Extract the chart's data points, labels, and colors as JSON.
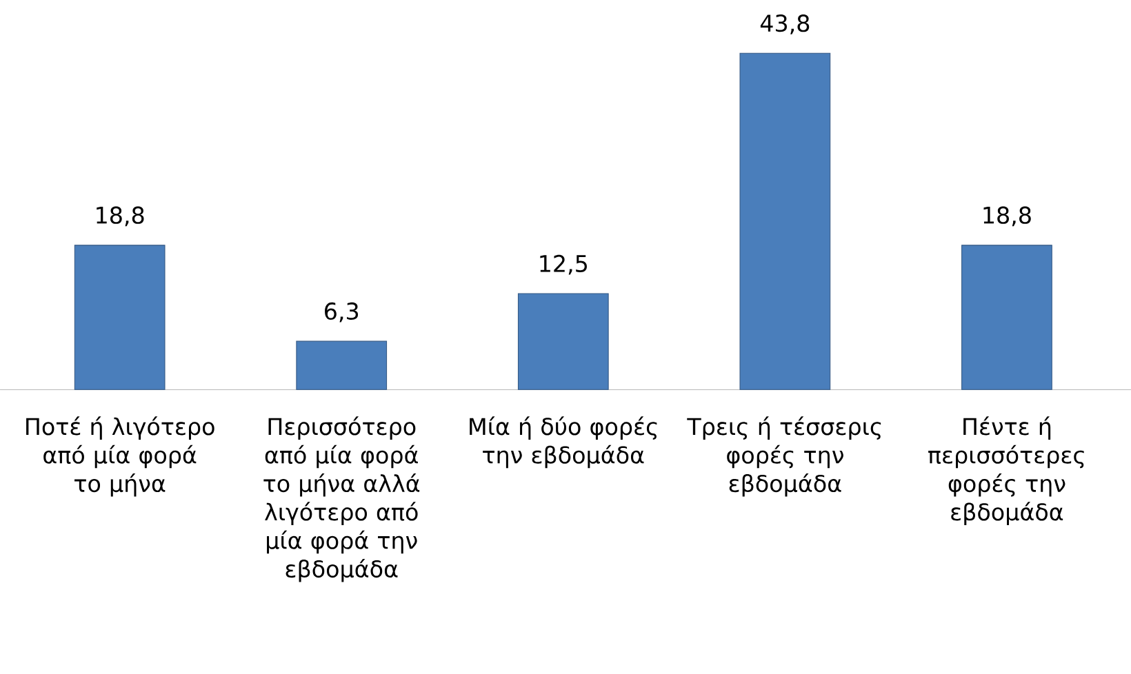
{
  "chart_data": {
    "type": "bar",
    "categories": [
      "Ποτέ ή λιγότερο από μία φορά το μήνα",
      "Περισσότερο από μία φορά το μήνα αλλά λιγότερο από μία φορά την εβδομάδα",
      "Μία ή δύο φορές την εβδομάδα",
      "Τρεις ή τέσσερις φορές την εβδομάδα",
      "Πέντε ή περισσότερες φορές την εβδομάδα"
    ],
    "values": [
      18.8,
      6.3,
      12.5,
      43.8,
      18.8
    ],
    "value_labels": [
      "18,8",
      "6,3",
      "12,5",
      "43,8",
      "18,8"
    ],
    "color": "#4a7ebb"
  }
}
